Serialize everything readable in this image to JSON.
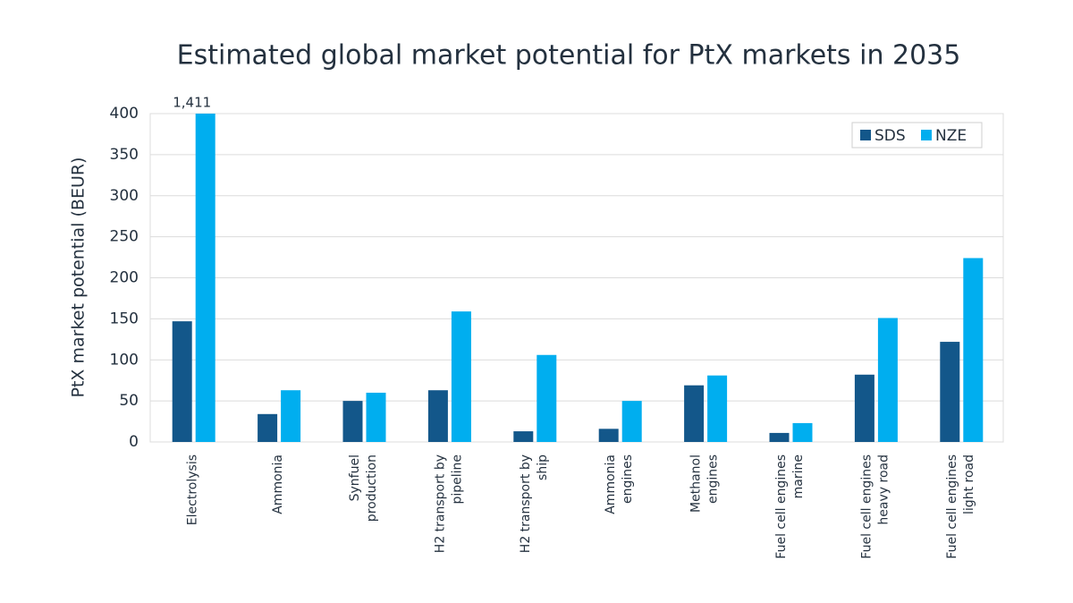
{
  "chart_data": {
    "type": "bar",
    "title": "Estimated global market potential for PtX markets in 2035",
    "y_label": "PtX market potential (BEUR)",
    "categories": [
      "Electrolysis",
      "Ammonia",
      "Synfuel\nproduction",
      "H2 transport by\npipeline",
      "H2 transport by\nship",
      "Ammonia\nengines",
      "Methanol\nengines",
      "Fuel cell engines\nmarine",
      "Fuel cell engines\nheavy road",
      "Fuel cell engines\nlight road"
    ],
    "series": [
      {
        "name": "SDS",
        "color": "#13578a",
        "values": [
          147,
          34,
          50,
          63,
          13,
          16,
          69,
          11,
          82,
          122
        ]
      },
      {
        "name": "NZE",
        "color": "#00aeef",
        "values": [
          1411,
          63,
          60,
          159,
          106,
          50,
          81,
          23,
          151,
          224
        ],
        "value_labels": [
          "1,411",
          null,
          null,
          null,
          null,
          null,
          null,
          null,
          null,
          null
        ]
      }
    ],
    "ylim": [
      0,
      400
    ],
    "yticks": [
      0,
      50,
      100,
      150,
      200,
      250,
      300,
      350,
      400
    ],
    "grid": true,
    "legend": "upper right"
  }
}
